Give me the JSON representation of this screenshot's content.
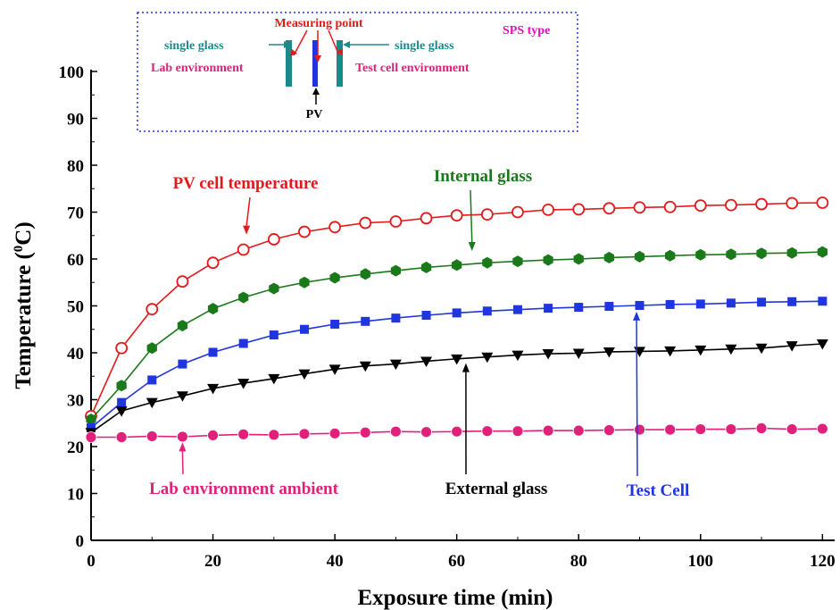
{
  "chart_data": {
    "type": "line",
    "xlabel": "Exposure time (min)",
    "ylabel": {
      "main": "Temperature (",
      "sup": "0",
      "tail": "C)"
    },
    "xlim": [
      0,
      122
    ],
    "ylim": [
      0,
      100
    ],
    "xticks": [
      0,
      20,
      40,
      60,
      80,
      100,
      120
    ],
    "yticks": [
      0,
      10,
      20,
      30,
      40,
      50,
      60,
      70,
      80,
      90,
      100
    ],
    "grid": false,
    "x": [
      0,
      5,
      10,
      15,
      20,
      25,
      30,
      35,
      40,
      45,
      50,
      55,
      60,
      65,
      70,
      75,
      80,
      85,
      90,
      95,
      100,
      105,
      110,
      115,
      120
    ],
    "series": [
      {
        "name": "PV cell temperature",
        "color": "#e31a1c",
        "marker": "open-circle",
        "values": [
          26.5,
          41.0,
          49.3,
          55.2,
          59.2,
          62.0,
          64.2,
          65.8,
          66.8,
          67.7,
          68.0,
          68.7,
          69.3,
          69.5,
          70.0,
          70.5,
          70.6,
          70.8,
          71.0,
          71.1,
          71.4,
          71.5,
          71.7,
          71.9,
          72.0
        ]
      },
      {
        "name": "Internal glass",
        "color": "#1a7a1a",
        "marker": "hexagon",
        "values": [
          25.8,
          33.0,
          41.0,
          45.8,
          49.4,
          51.8,
          53.7,
          55.0,
          56.0,
          56.8,
          57.5,
          58.2,
          58.7,
          59.2,
          59.5,
          59.8,
          60.0,
          60.3,
          60.5,
          60.7,
          60.9,
          61.0,
          61.2,
          61.3,
          61.5
        ]
      },
      {
        "name": "Test Cell",
        "color": "#1f35e0",
        "marker": "square",
        "values": [
          24.0,
          29.4,
          34.2,
          37.6,
          40.1,
          42.0,
          43.8,
          45.0,
          46.1,
          46.7,
          47.4,
          48.0,
          48.5,
          48.9,
          49.2,
          49.5,
          49.7,
          49.9,
          50.1,
          50.3,
          50.4,
          50.6,
          50.8,
          50.9,
          51.0
        ]
      },
      {
        "name": "External glass",
        "color": "#000000",
        "marker": "triangle-down",
        "values": [
          23.0,
          27.6,
          29.4,
          30.8,
          32.4,
          33.5,
          34.5,
          35.5,
          36.5,
          37.2,
          37.6,
          38.2,
          38.7,
          39.1,
          39.5,
          39.8,
          39.9,
          40.2,
          40.3,
          40.4,
          40.6,
          40.8,
          41.0,
          41.5,
          41.9
        ]
      },
      {
        "name": "Lab environment ambient",
        "color": "#e0207a",
        "marker": "filled-circle",
        "values": [
          22.0,
          22.0,
          22.2,
          22.1,
          22.4,
          22.6,
          22.5,
          22.7,
          22.8,
          23.0,
          23.2,
          23.1,
          23.2,
          23.3,
          23.3,
          23.4,
          23.4,
          23.5,
          23.6,
          23.6,
          23.7,
          23.7,
          23.9,
          23.7,
          23.8
        ]
      }
    ],
    "annotations": [
      {
        "text": "PV cell temperature",
        "color": "#e31a1c",
        "arrow_x": 25.5,
        "arrow_y": 63.5
      },
      {
        "text": "Internal glass",
        "color": "#1a7a1a",
        "arrow_x": 62.5,
        "arrow_y": 60.0
      },
      {
        "text": "External glass",
        "color": "#000000",
        "arrow_x": 61.5,
        "arrow_y": 39.5
      },
      {
        "text": "Test Cell",
        "color": "#1f35e0",
        "arrow_x": 89.5,
        "arrow_y": 50.5
      },
      {
        "text": "Lab environment ambient",
        "color": "#e0207a",
        "arrow_x": 15.0,
        "arrow_y": 22.6
      }
    ],
    "inset": {
      "measuring_point": "Measuring point",
      "single_glass_left": "single glass",
      "single_glass_right": "single glass",
      "lab_env": "Lab environment",
      "test_env": "Test cell environment",
      "pv": "PV",
      "sps": "SPS type"
    }
  }
}
